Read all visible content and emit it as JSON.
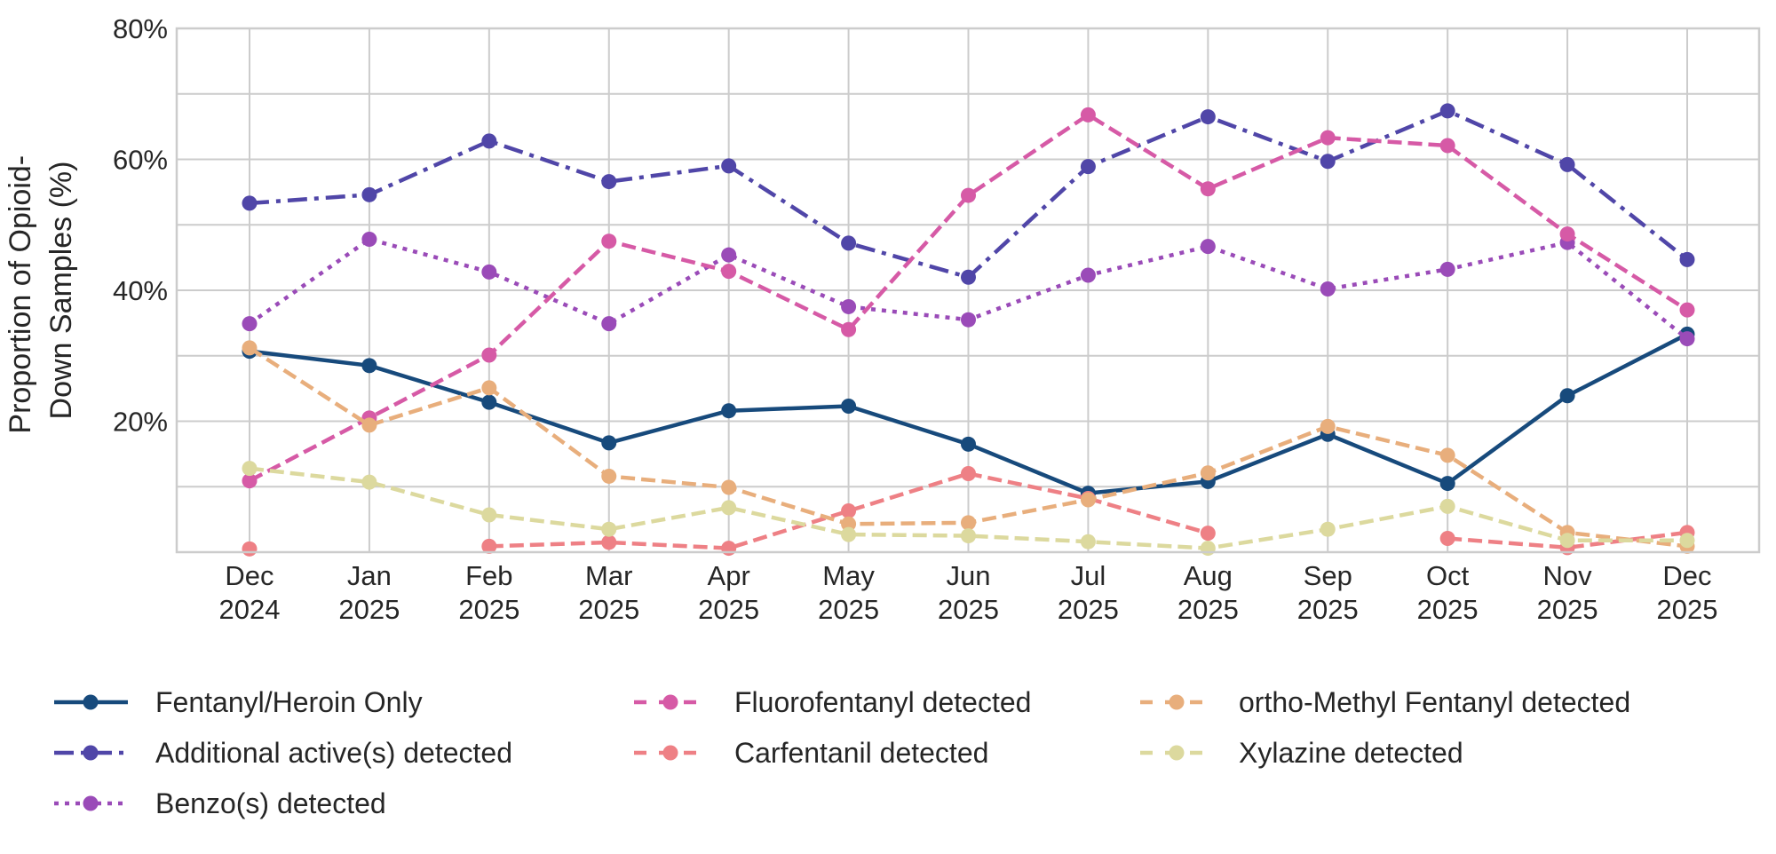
{
  "chart_data": {
    "type": "line",
    "title": "",
    "xlabel": "",
    "ylabel": "Proportion of Opioid-\nDown Samples (%)",
    "ylabel_lines": [
      "Proportion of Opioid-",
      "Down Samples (%)"
    ],
    "ylim": [
      0,
      80
    ],
    "yticks": [
      20,
      40,
      60,
      80
    ],
    "ytick_labels": [
      "20%",
      "40%",
      "60%",
      "80%"
    ],
    "grid": true,
    "grid_minor_y": [
      10,
      30,
      50,
      70
    ],
    "legend_position": "bottom",
    "categories": [
      [
        "Dec",
        "2024"
      ],
      [
        "Jan",
        "2025"
      ],
      [
        "Feb",
        "2025"
      ],
      [
        "Mar",
        "2025"
      ],
      [
        "Apr",
        "2025"
      ],
      [
        "May",
        "2025"
      ],
      [
        "Jun",
        "2025"
      ],
      [
        "Jul",
        "2025"
      ],
      [
        "Aug",
        "2025"
      ],
      [
        "Sep",
        "2025"
      ],
      [
        "Oct",
        "2025"
      ],
      [
        "Nov",
        "2025"
      ],
      [
        "Dec",
        "2025"
      ]
    ],
    "series": [
      {
        "name": "Fentanyl/Heroin Only",
        "color": "#174a7c",
        "style": "solid",
        "values": [
          30.7,
          28.5,
          22.9,
          16.7,
          21.6,
          22.3,
          16.5,
          9.0,
          10.8,
          18.0,
          10.5,
          23.9,
          33.3
        ]
      },
      {
        "name": "Additional active(s) detected",
        "color": "#5046a8",
        "style": "dashdot",
        "values": [
          53.3,
          54.6,
          62.8,
          56.6,
          59.0,
          47.2,
          42.0,
          58.9,
          66.5,
          59.7,
          67.4,
          59.2,
          44.7
        ]
      },
      {
        "name": "Benzo(s) detected",
        "color": "#9a4bb8",
        "style": "dotted",
        "values": [
          34.9,
          47.8,
          42.8,
          34.9,
          45.4,
          37.5,
          35.5,
          42.3,
          46.7,
          40.2,
          43.2,
          47.3,
          32.6
        ]
      },
      {
        "name": "Fluorofentanyl detected",
        "color": "#d65aa6",
        "style": "dashed",
        "values": [
          10.9,
          20.5,
          30.1,
          47.5,
          42.9,
          34.0,
          54.5,
          66.8,
          55.5,
          63.3,
          62.1,
          48.6,
          37.0
        ]
      },
      {
        "name": "Carfentanil detected",
        "color": "#ee8085",
        "style": "dashed",
        "values": [
          0.5,
          null,
          0.9,
          1.5,
          0.6,
          6.3,
          12.0,
          8.2,
          2.9,
          null,
          2.1,
          0.7,
          3.0
        ]
      },
      {
        "name": "ortho-Methyl Fentanyl detected",
        "color": "#e8ae7c",
        "style": "dashed",
        "values": [
          31.2,
          19.4,
          25.1,
          11.6,
          9.9,
          4.3,
          4.5,
          8.0,
          12.1,
          19.2,
          14.8,
          3.0,
          0.9
        ]
      },
      {
        "name": "Xylazine detected",
        "color": "#dcd99e",
        "style": "dashed",
        "values": [
          12.8,
          10.7,
          5.7,
          3.5,
          6.8,
          2.7,
          2.5,
          1.6,
          0.6,
          3.5,
          7.0,
          1.8,
          1.8
        ]
      }
    ]
  }
}
